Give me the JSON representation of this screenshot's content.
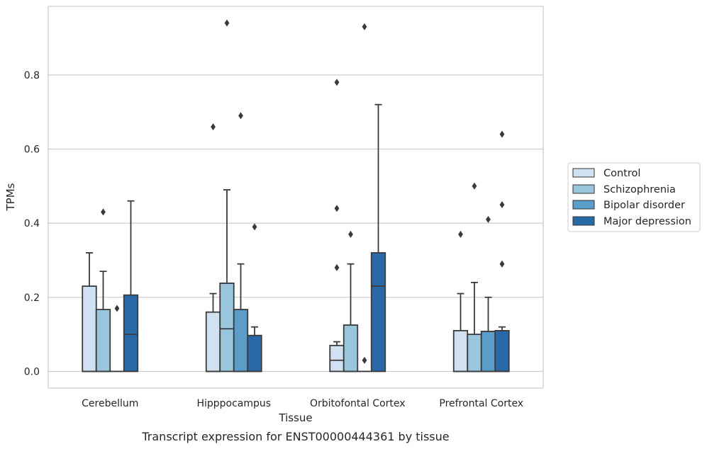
{
  "caption": "Transcript expression for ENST00000444361 by tissue",
  "chart_data": {
    "type": "box",
    "xlabel": "Tissue",
    "ylabel": "TPMs",
    "ylim": [
      -0.045,
      0.985
    ],
    "yticks": [
      0.0,
      0.2,
      0.4,
      0.6,
      0.8
    ],
    "ytick_labels": [
      "0.0",
      "0.2",
      "0.4",
      "0.6",
      "0.8"
    ],
    "grid": "horizontal",
    "legend_position": "right",
    "categories": [
      "Cerebellum",
      "Hipppocampus",
      "Orbitofontal Cortex",
      "Prefrontal Cortex"
    ],
    "series": [
      {
        "name": "Control",
        "color": "#d0e1f1",
        "boxes": [
          {
            "q1": 0.0,
            "median": 0.0,
            "q3": 0.23,
            "whisker_low": 0.0,
            "whisker_high": 0.32,
            "outliers": []
          },
          {
            "q1": 0.0,
            "median": 0.0,
            "q3": 0.16,
            "whisker_low": 0.0,
            "whisker_high": 0.21,
            "outliers": [
              0.66
            ]
          },
          {
            "q1": 0.0,
            "median": 0.03,
            "q3": 0.07,
            "whisker_low": 0.0,
            "whisker_high": 0.08,
            "outliers": [
              0.28,
              0.44,
              0.78
            ]
          },
          {
            "q1": 0.0,
            "median": 0.0,
            "q3": 0.11,
            "whisker_low": 0.0,
            "whisker_high": 0.21,
            "outliers": [
              0.37
            ]
          }
        ]
      },
      {
        "name": "Schizophrenia",
        "color": "#9ac6dd",
        "boxes": [
          {
            "q1": 0.0,
            "median": 0.0,
            "q3": 0.167,
            "whisker_low": 0.0,
            "whisker_high": 0.27,
            "outliers": [
              0.43
            ]
          },
          {
            "q1": 0.0,
            "median": 0.115,
            "q3": 0.238,
            "whisker_low": 0.0,
            "whisker_high": 0.49,
            "outliers": [
              0.94
            ]
          },
          {
            "q1": 0.0,
            "median": 0.0,
            "q3": 0.125,
            "whisker_low": 0.0,
            "whisker_high": 0.29,
            "outliers": [
              0.37
            ]
          },
          {
            "q1": 0.0,
            "median": 0.0,
            "q3": 0.1,
            "whisker_low": 0.0,
            "whisker_high": 0.24,
            "outliers": [
              0.5
            ]
          }
        ]
      },
      {
        "name": "Bipolar disorder",
        "color": "#5a9dc8",
        "boxes": [
          {
            "q1": 0.0,
            "median": 0.0,
            "q3": 0.0,
            "whisker_low": 0.0,
            "whisker_high": 0.0,
            "outliers": [
              0.17
            ]
          },
          {
            "q1": 0.0,
            "median": 0.0,
            "q3": 0.167,
            "whisker_low": 0.0,
            "whisker_high": 0.29,
            "outliers": [
              0.69
            ]
          },
          {
            "q1": 0.0,
            "median": 0.0,
            "q3": 0.0,
            "whisker_low": 0.0,
            "whisker_high": 0.0,
            "outliers": [
              0.03,
              0.93
            ]
          },
          {
            "q1": 0.0,
            "median": 0.0,
            "q3": 0.108,
            "whisker_low": 0.0,
            "whisker_high": 0.2,
            "outliers": [
              0.41
            ]
          }
        ]
      },
      {
        "name": "Major depression",
        "color": "#2a69a7",
        "boxes": [
          {
            "q1": 0.0,
            "median": 0.1,
            "q3": 0.206,
            "whisker_low": 0.0,
            "whisker_high": 0.46,
            "outliers": []
          },
          {
            "q1": 0.0,
            "median": 0.0,
            "q3": 0.097,
            "whisker_low": 0.0,
            "whisker_high": 0.12,
            "outliers": [
              0.39
            ]
          },
          {
            "q1": 0.0,
            "median": 0.23,
            "q3": 0.32,
            "whisker_low": 0.0,
            "whisker_high": 0.72,
            "outliers": []
          },
          {
            "q1": 0.0,
            "median": 0.0,
            "q3": 0.11,
            "whisker_low": 0.0,
            "whisker_high": 0.12,
            "outliers": [
              0.29,
              0.45,
              0.64
            ]
          }
        ]
      }
    ]
  }
}
